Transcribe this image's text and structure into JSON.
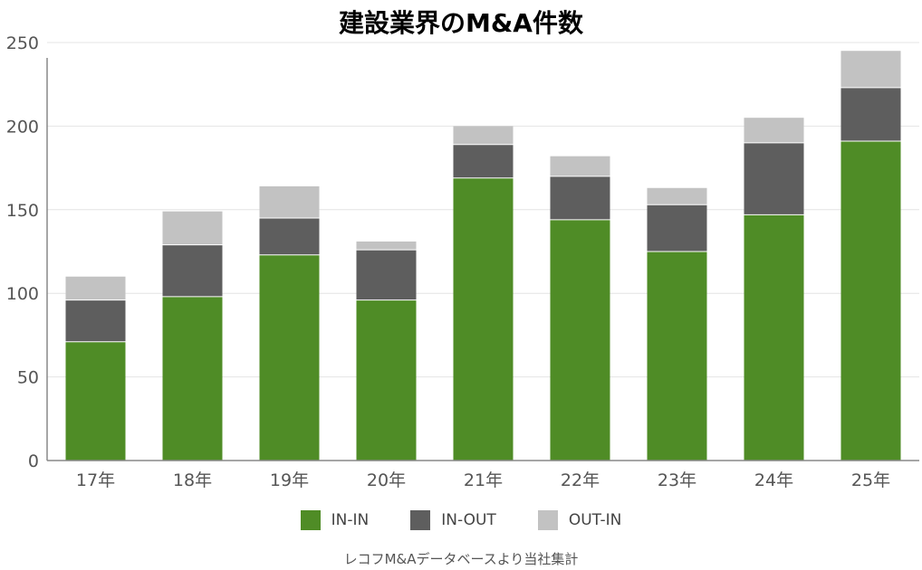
{
  "chart_data": {
    "type": "bar",
    "stacked": true,
    "title": "建設業界のM&A件数",
    "categories": [
      "17年",
      "18年",
      "19年",
      "20年",
      "21年",
      "22年",
      "23年",
      "24年",
      "25年"
    ],
    "series": [
      {
        "name": "IN-IN",
        "color": "#4f8c26",
        "values": [
          71,
          98,
          123,
          96,
          169,
          144,
          125,
          147,
          191
        ]
      },
      {
        "name": "IN-OUT",
        "color": "#5e5e5e",
        "values": [
          25,
          31,
          22,
          30,
          20,
          26,
          28,
          43,
          32
        ]
      },
      {
        "name": "OUT-IN",
        "color": "#c2c2c2",
        "values": [
          14,
          20,
          19,
          5,
          11,
          12,
          10,
          15,
          22
        ]
      }
    ],
    "ylim": [
      0,
      250
    ],
    "yticks": [
      0,
      50,
      100,
      150,
      200,
      250
    ],
    "grid": true,
    "legend_position": "bottom",
    "source": "レコフM&Aデータベースより当社集計"
  }
}
